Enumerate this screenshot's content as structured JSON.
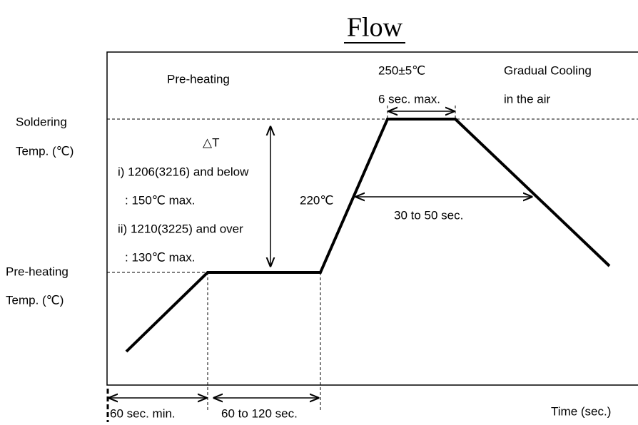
{
  "title": "Flow",
  "labels": {
    "preheating": "Pre-heating",
    "peak_temp": "250±5℃",
    "peak_time": "6 sec. max.",
    "cooling_1": "Gradual Cooling",
    "cooling_2": "in the air",
    "soldering_temp_1": "Soldering",
    "soldering_temp_2": "Temp. (℃)",
    "delta_t": "△T",
    "case_1": "i) 1206(3216) and below",
    "case_1_value": ": 150℃ max.",
    "case_2": "ii) 1210(3225) and over",
    "case_2_value": ": 130℃ max.",
    "temp_220": "220℃",
    "time_220": "30 to 50 sec.",
    "preheat_temp_1": "Pre-heating",
    "preheat_temp_2": "Temp. (℃)",
    "ramp_time": "60 sec. min.",
    "preheat_time": "60 to 120 sec.",
    "time_axis": "Time (sec.)"
  }
}
